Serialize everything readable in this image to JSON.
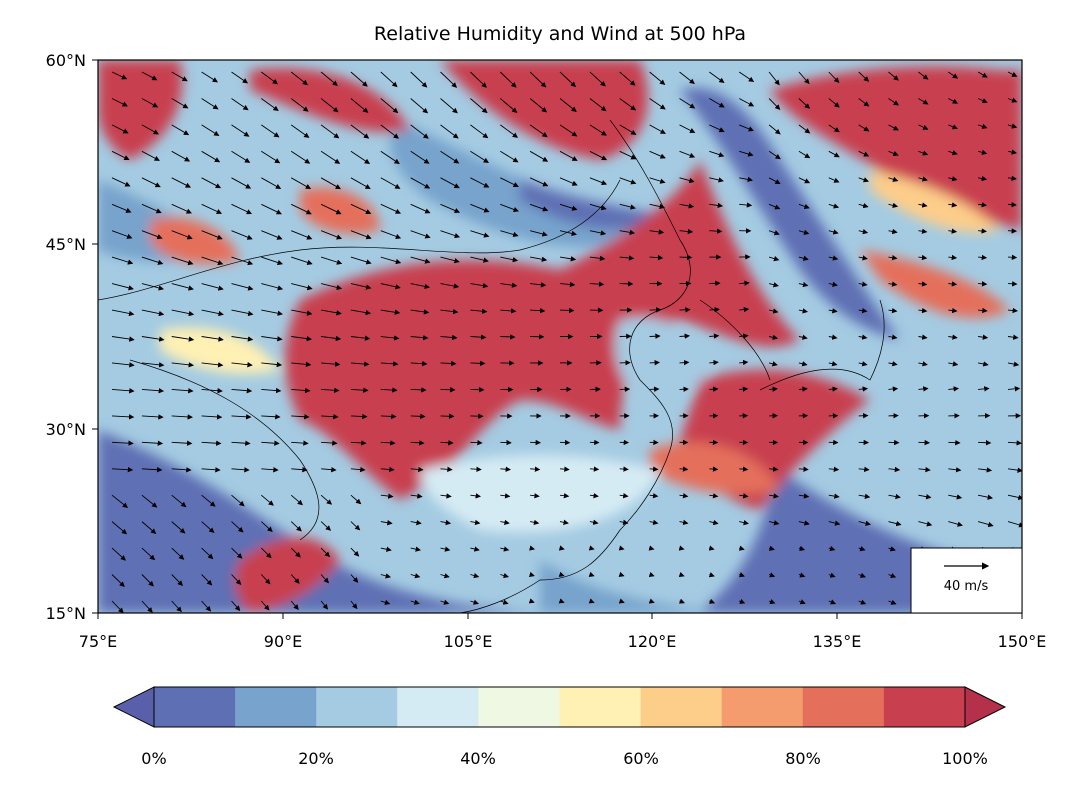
{
  "title": "Relative Humidity and Wind at 500 hPa",
  "map": {
    "lon_range": [
      75,
      150
    ],
    "lat_range": [
      15,
      60
    ],
    "lon_ticks": [
      "75°E",
      "90°E",
      "105°E",
      "120°E",
      "135°E",
      "150°E"
    ],
    "lat_ticks": [
      "15°N",
      "30°N",
      "45°N",
      "60°N"
    ]
  },
  "wind_key": {
    "label": "40 m/s"
  },
  "colorbar": {
    "tick_labels": [
      "0%",
      "20%",
      "40%",
      "60%",
      "80%",
      "100%"
    ],
    "colors": [
      "#5e6fb4",
      "#77a3cc",
      "#a4cbe2",
      "#d5ebf4",
      "#eff8e2",
      "#fff0b4",
      "#fdcd8a",
      "#f59c6f",
      "#e46f5b",
      "#c8404f"
    ],
    "under_color": "#5a5fab",
    "over_color": "#b5304a"
  },
  "colors": {
    "low": "#5e6fb4",
    "high": "#c8404f"
  }
}
